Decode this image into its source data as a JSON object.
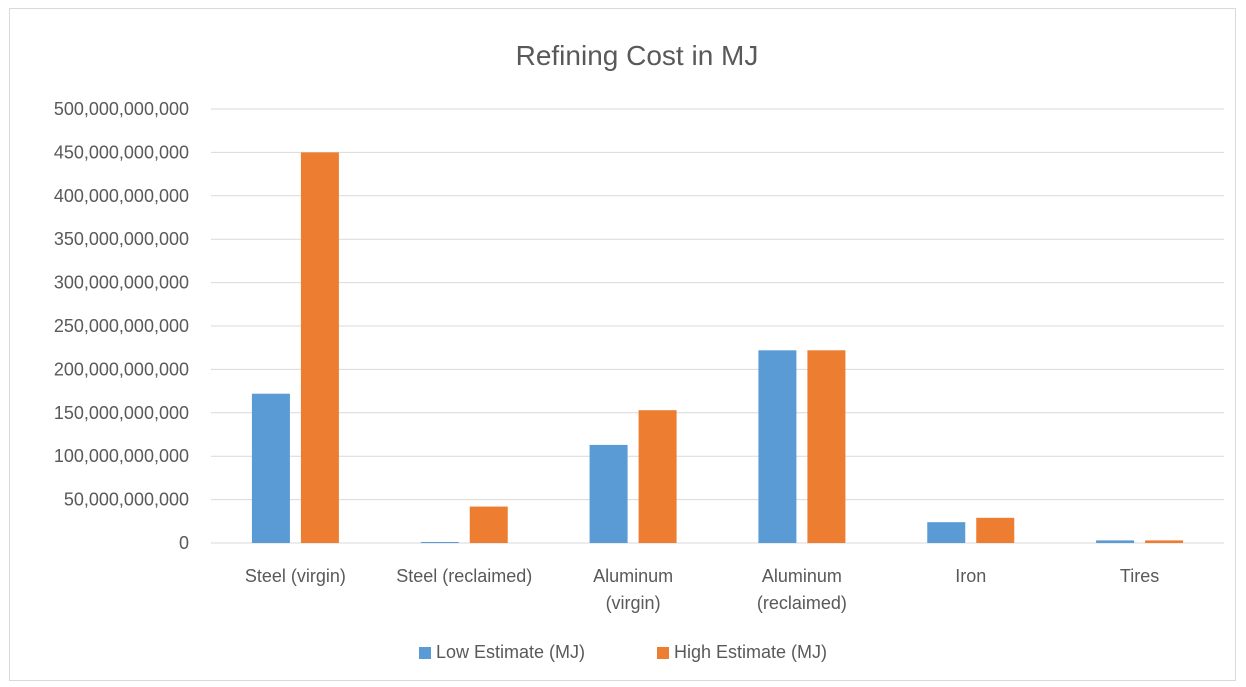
{
  "chart_data": {
    "type": "bar",
    "title": "Refining Cost in MJ",
    "xlabel": "",
    "ylabel": "",
    "categories": [
      [
        "Steel (virgin)"
      ],
      [
        "Steel (reclaimed)"
      ],
      [
        "Aluminum",
        "(virgin)"
      ],
      [
        "Aluminum",
        "(reclaimed)"
      ],
      [
        "Iron"
      ],
      [
        "Tires"
      ]
    ],
    "series": [
      {
        "name": "Low Estimate (MJ)",
        "color": "#5B9BD5",
        "values": [
          172000000000,
          800000000,
          113000000000,
          222000000000,
          24000000000,
          3000000000
        ]
      },
      {
        "name": "High Estimate (MJ)",
        "color": "#ED7D31",
        "values": [
          450000000000,
          42000000000,
          153000000000,
          222000000000,
          29000000000,
          3000000000
        ]
      }
    ],
    "ylim": [
      0,
      500000000000
    ],
    "yticks": [
      {
        "value": 0,
        "label": "0"
      },
      {
        "value": 50000000000,
        "label": "50,000,000,000"
      },
      {
        "value": 100000000000,
        "label": "100,000,000,000"
      },
      {
        "value": 150000000000,
        "label": "150,000,000,000"
      },
      {
        "value": 200000000000,
        "label": "200,000,000,000"
      },
      {
        "value": 250000000000,
        "label": "250,000,000,000"
      },
      {
        "value": 300000000000,
        "label": "300,000,000,000"
      },
      {
        "value": 350000000000,
        "label": "350,000,000,000"
      },
      {
        "value": 400000000000,
        "label": "400,000,000,000"
      },
      {
        "value": 450000000000,
        "label": "450,000,000,000"
      },
      {
        "value": 500000000000,
        "label": "500,000,000,000"
      }
    ],
    "grid": true,
    "legend_position": "bottom",
    "gridline_color": "#d9d9d9",
    "text_color": "#595959"
  }
}
